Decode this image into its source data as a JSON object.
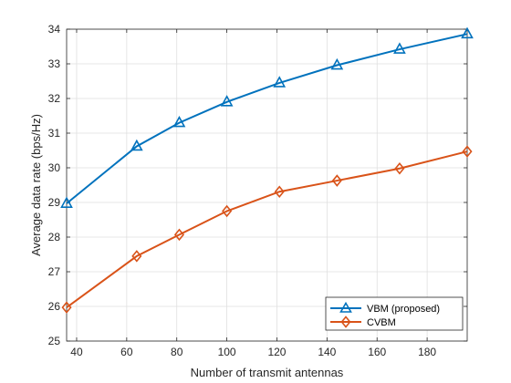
{
  "chart_data": {
    "type": "line",
    "title": "",
    "xlabel": "Number of transmit antennas",
    "ylabel": "Average data rate (bps/Hz)",
    "xlim": [
      36,
      196
    ],
    "ylim": [
      25,
      34
    ],
    "xticks": [
      40,
      60,
      80,
      100,
      120,
      140,
      160,
      180
    ],
    "yticks": [
      25,
      26,
      27,
      28,
      29,
      30,
      31,
      32,
      33,
      34
    ],
    "grid": true,
    "legend_position": "bottom-right",
    "series": [
      {
        "name": "VBM (proposed)",
        "color": "#0072BD",
        "marker": "triangle",
        "x": [
          36,
          64,
          81,
          100,
          121,
          144,
          169,
          196
        ],
        "y": [
          28.97,
          30.62,
          31.3,
          31.9,
          32.45,
          32.96,
          33.42,
          33.86
        ]
      },
      {
        "name": "CVBM",
        "color": "#D95319",
        "marker": "diamond",
        "x": [
          36,
          64,
          81,
          100,
          121,
          144,
          169,
          196
        ],
        "y": [
          25.97,
          27.45,
          28.07,
          28.75,
          29.31,
          29.63,
          29.98,
          30.47
        ]
      }
    ]
  }
}
